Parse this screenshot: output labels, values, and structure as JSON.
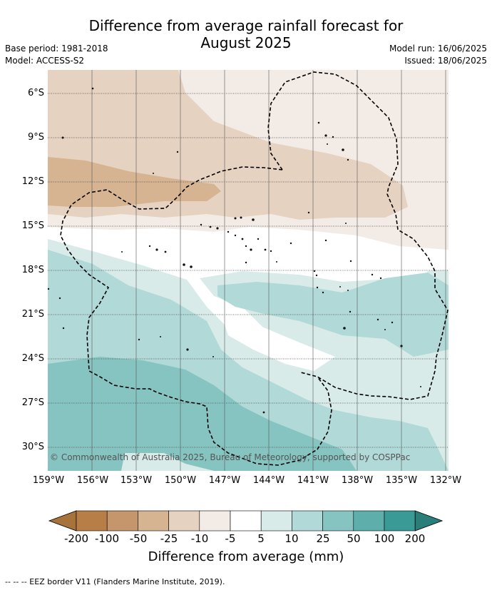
{
  "title_line1": "Difference from average rainfall forecast for",
  "title_line2": "August 2025",
  "meta": {
    "base_period": "Base period: 1981-2018",
    "model": "Model: ACCESS-S2",
    "model_run": "Model run: 16/06/2025",
    "issued": "Issued: 18/06/2025"
  },
  "lat_ticks": [
    "6°S",
    "9°S",
    "12°S",
    "15°S",
    "18°S",
    "21°S",
    "24°S",
    "27°S",
    "30°S"
  ],
  "lon_ticks": [
    "159°W",
    "156°W",
    "153°W",
    "150°W",
    "147°W",
    "144°W",
    "141°W",
    "138°W",
    "135°W",
    "132°W"
  ],
  "copyright": "© Commonwealth of Australia 2025, Bureau of Meteorology, supported by COSPPac",
  "colorbar": {
    "title": "Difference from average (mm)",
    "labels": [
      "-200",
      "-100",
      "-50",
      "-25",
      "-10",
      "-5",
      "5",
      "10",
      "25",
      "50",
      "100",
      "200"
    ],
    "colors": [
      "#a8723b",
      "#b77e48",
      "#c5956b",
      "#d6b391",
      "#e6d2c0",
      "#f3ebe5",
      "#ffffff",
      "#d8ebe9",
      "#b0d9d7",
      "#86c4c1",
      "#5eafab",
      "#3a9b96",
      "#2a7e79"
    ]
  },
  "footnote": "-- -- -- EEZ border V11 (Flanders Marine Institute, 2019)."
}
